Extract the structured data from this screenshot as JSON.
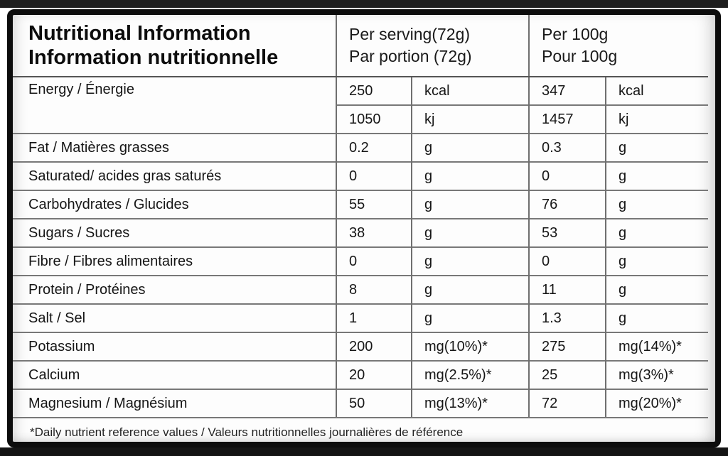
{
  "header": {
    "title_line1": "Nutritional Information",
    "title_line2": "Information nutritionnelle",
    "serving_line1": "Per serving(72g)",
    "serving_line2": "Par portion (72g)",
    "per100_line1": "Per 100g",
    "per100_line2": "Pour 100g"
  },
  "table": {
    "rows": [
      {
        "label": "Energy / Énergie",
        "sv": "250",
        "su": "kcal",
        "pv": "347",
        "pu": "kcal"
      },
      {
        "label": "",
        "sv": "1050",
        "su": "kj",
        "pv": "1457",
        "pu": "kj"
      },
      {
        "label": "Fat / Matières grasses",
        "sv": "0.2",
        "su": "g",
        "pv": "0.3",
        "pu": "g"
      },
      {
        "label": "Saturated/ acides gras saturés",
        "sv": "0",
        "su": "g",
        "pv": "0",
        "pu": "g"
      },
      {
        "label": "Carbohydrates / Glucides",
        "sv": "55",
        "su": "g",
        "pv": "76",
        "pu": "g"
      },
      {
        "label": "Sugars / Sucres",
        "sv": "38",
        "su": "g",
        "pv": "53",
        "pu": "g"
      },
      {
        "label": "Fibre / Fibres alimentaires",
        "sv": "0",
        "su": "g",
        "pv": "0",
        "pu": "g"
      },
      {
        "label": "Protein / Protéines",
        "sv": "8",
        "su": "g",
        "pv": "11",
        "pu": "g"
      },
      {
        "label": "Salt / Sel",
        "sv": "1",
        "su": "g",
        "pv": "1.3",
        "pu": "g"
      },
      {
        "label": "Potassium",
        "sv": "200",
        "su": "mg(10%)*",
        "pv": "275",
        "pu": "mg(14%)*"
      },
      {
        "label": "Calcium",
        "sv": "20",
        "su": "mg(2.5%)*",
        "pv": "25",
        "pu": "mg(3%)*"
      },
      {
        "label": "Magnesium / Magnésium",
        "sv": "50",
        "su": "mg(13%)*",
        "pv": "72",
        "pu": "mg(20%)*"
      }
    ]
  },
  "footnote": "*Daily nutrient reference values / Valeurs nutritionnelles journalières de référence",
  "colors": {
    "outer_border": "#0c0c0c",
    "grid_line": "#6f6f6f",
    "header_rule": "#555555",
    "text": "#161616",
    "card_background": "#fdfdfd",
    "edge_strip": "#1e1e1e"
  }
}
